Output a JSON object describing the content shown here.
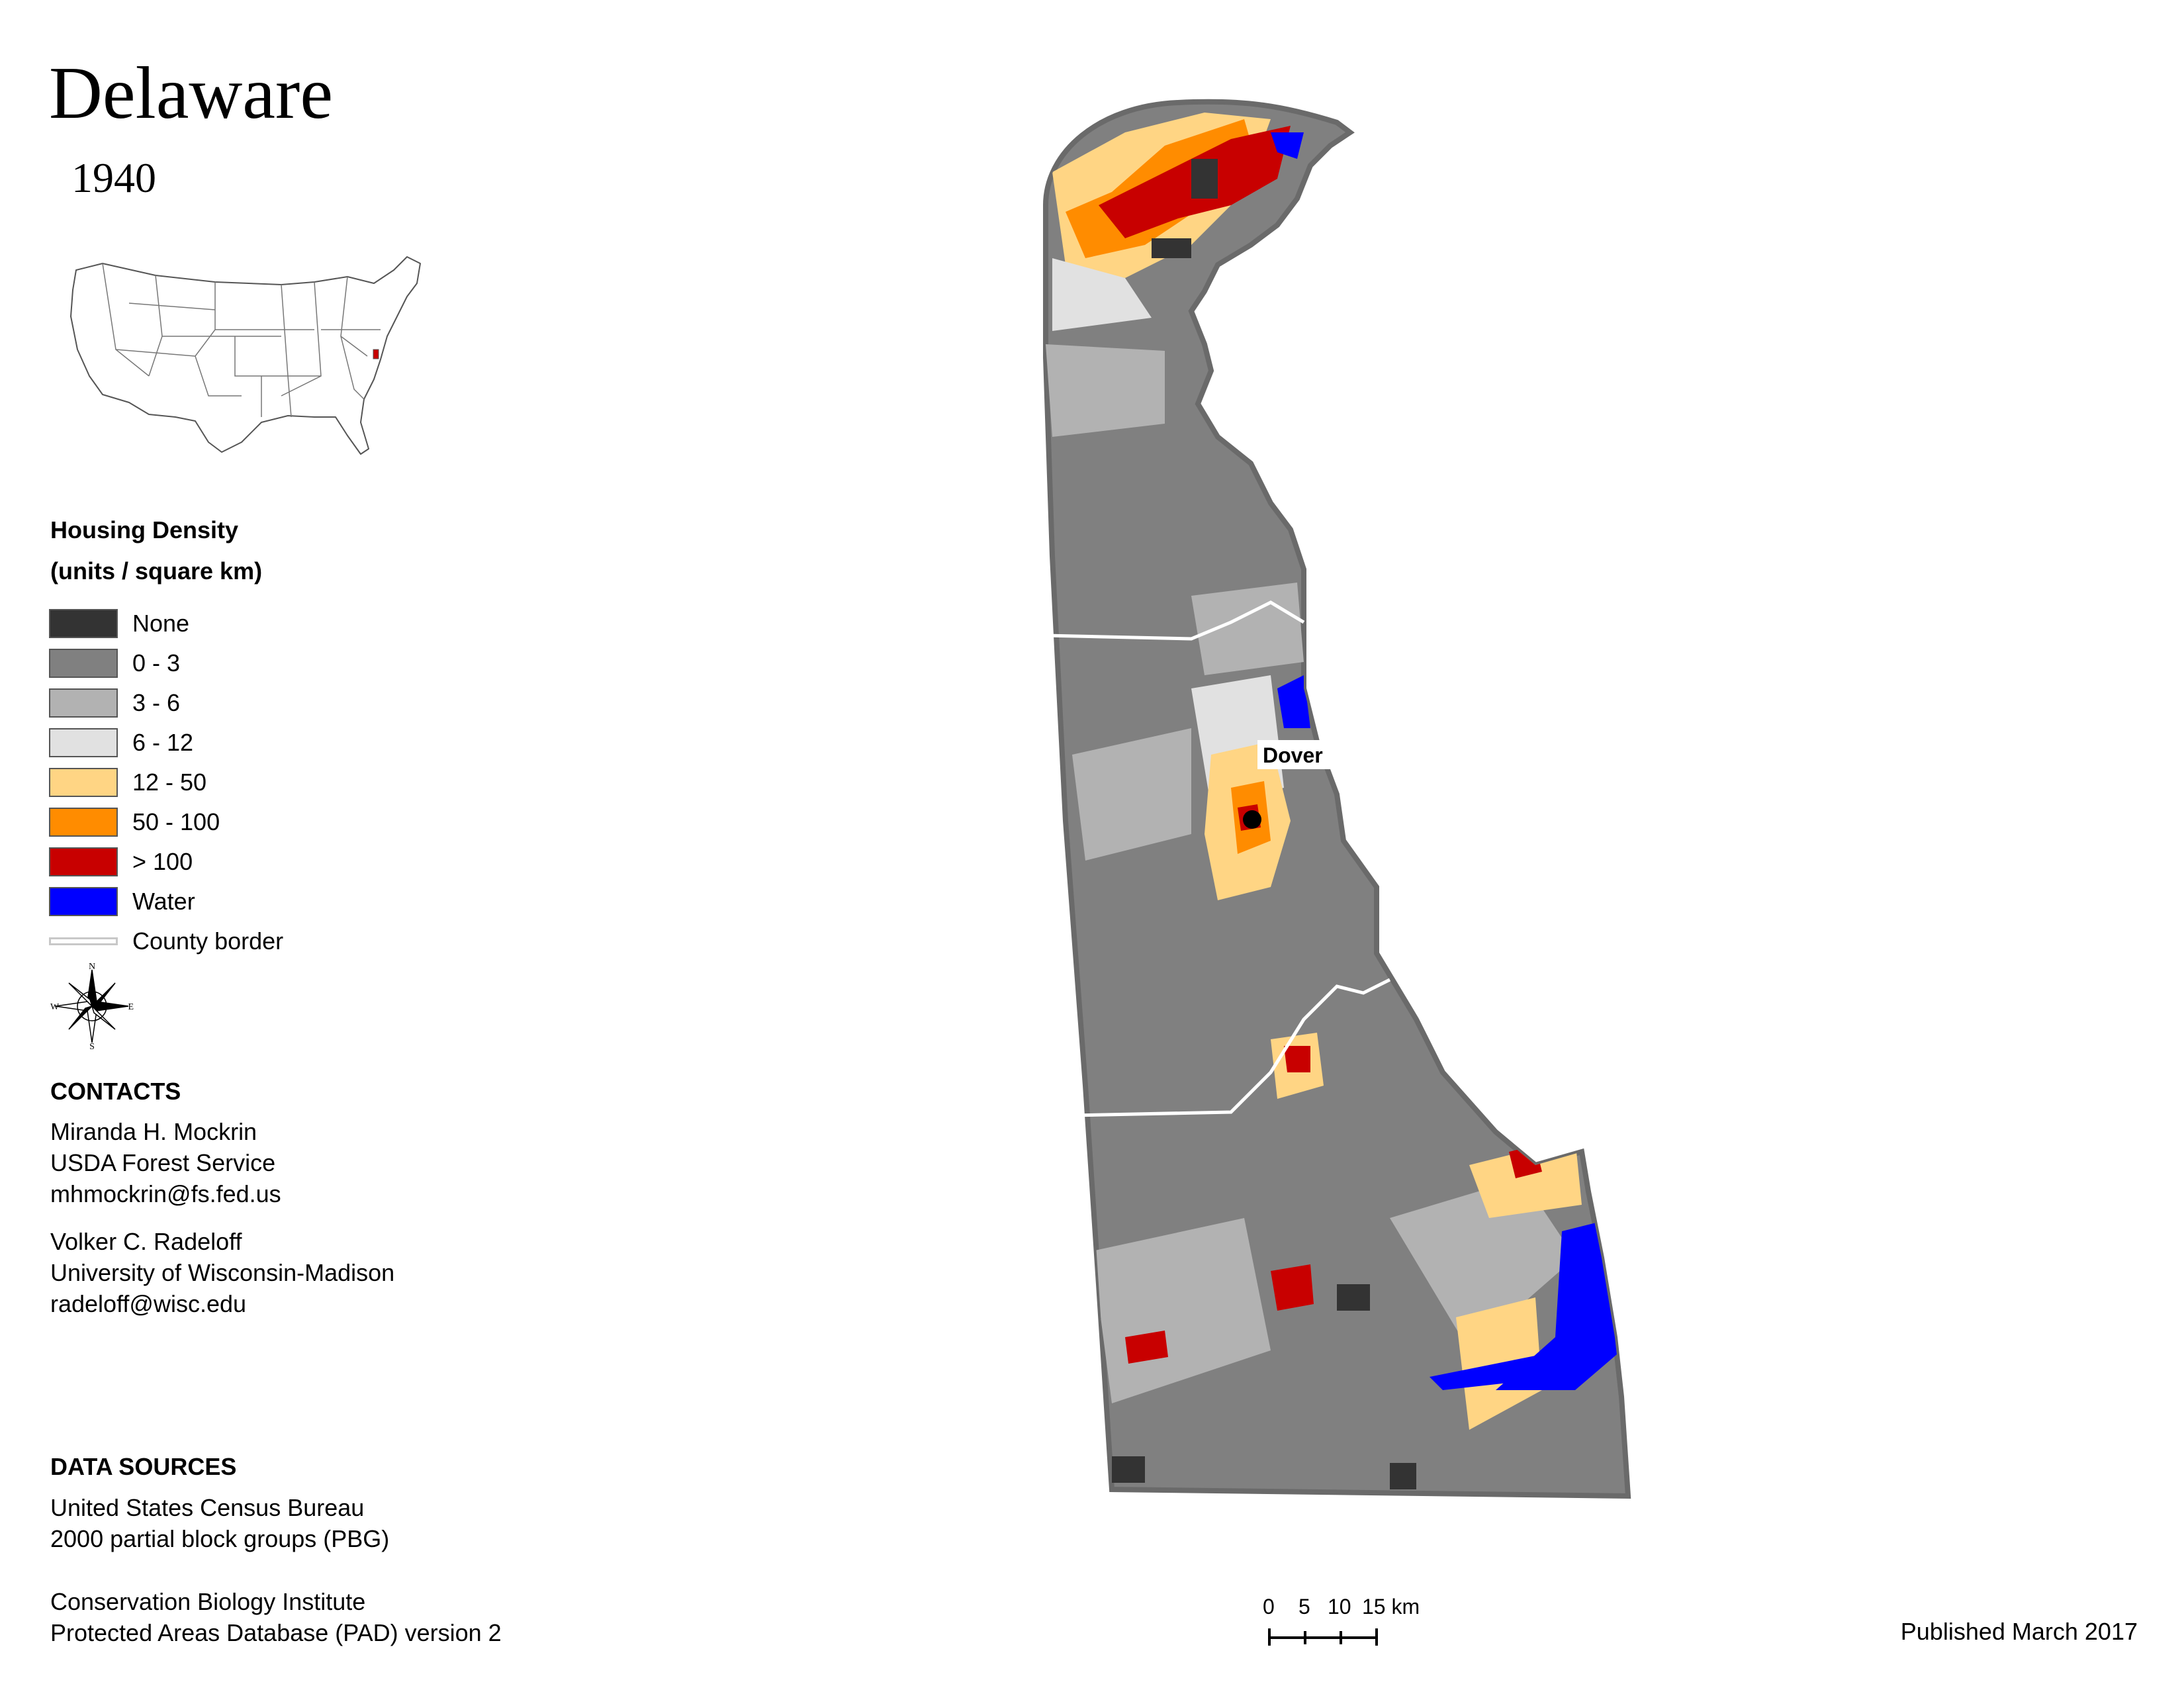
{
  "title": "Delaware",
  "year": "1940",
  "legend": {
    "title_line1": "Housing Density",
    "title_line2": "(units / square km)",
    "items": [
      {
        "label": "None",
        "color": "#333333"
      },
      {
        "label": "0 - 3",
        "color": "#808080"
      },
      {
        "label": "3 - 6",
        "color": "#b2b2b2"
      },
      {
        "label": "6 - 12",
        "color": "#e1e1e1"
      },
      {
        "label": "12 - 50",
        "color": "#ffd584"
      },
      {
        "label": "50 - 100",
        "color": "#ff8c00"
      },
      {
        "label": "> 100",
        "color": "#c80000"
      },
      {
        "label": "Water",
        "color": "#0000ff"
      }
    ],
    "county_border_label": "County border"
  },
  "compass": {
    "n": "N",
    "s": "S",
    "e": "E",
    "w": "W"
  },
  "contacts": {
    "heading": "CONTACTS",
    "person1": {
      "name": "Miranda H. Mockrin",
      "org": "USDA Forest Service",
      "email": "mhmockrin@fs.fed.us"
    },
    "person2": {
      "name": "Volker C. Radeloff",
      "org": "University of Wisconsin-Madison",
      "email": "radeloff@wisc.edu"
    }
  },
  "data_sources": {
    "heading": "DATA SOURCES",
    "source1_line1": "United States Census Bureau",
    "source1_line2": "2000 partial block groups (PBG)",
    "source2_line1": "Conservation Biology Institute",
    "source2_line2": "Protected Areas Database (PAD) version 2"
  },
  "map": {
    "city_label": "Dover"
  },
  "scale_bar": {
    "labels": [
      "0",
      "5",
      "10",
      "15 km"
    ]
  },
  "published": "Published March 2017"
}
